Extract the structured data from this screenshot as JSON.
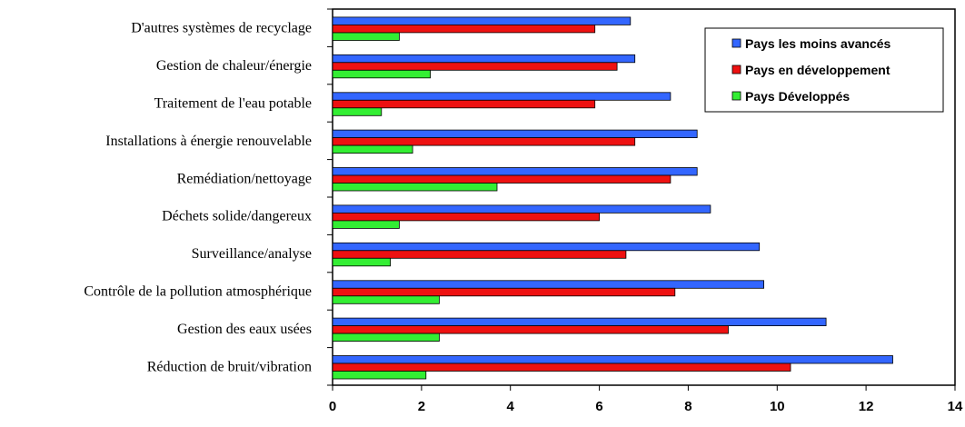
{
  "chart_data": {
    "type": "bar",
    "orientation": "horizontal",
    "title": "",
    "xlabel": "",
    "ylabel": "",
    "xlim": [
      0,
      14
    ],
    "x_ticks": [
      "0",
      "2",
      "4",
      "6",
      "8",
      "10",
      "12",
      "14"
    ],
    "grid": false,
    "legend_position": "top-right",
    "categories": [
      "D'autres systèmes de recyclage",
      "Gestion de chaleur/énergie",
      "Traitement de l'eau potable",
      "Installations à énergie renouvelable",
      "Remédiation/nettoyage",
      "Déchets solide/dangereux",
      "Surveillance/analyse",
      "Contrôle de la pollution atmosphérique",
      "Gestion des eaux usées",
      "Réduction de bruit/vibration"
    ],
    "series": [
      {
        "name": "Pays les moins avancés",
        "color": "#3366ff",
        "values": [
          6.7,
          6.8,
          7.6,
          8.2,
          8.2,
          8.5,
          9.6,
          9.7,
          11.1,
          12.6
        ]
      },
      {
        "name": "Pays en développement",
        "color": "#ee1111",
        "values": [
          5.9,
          6.4,
          5.9,
          6.8,
          7.6,
          6.0,
          6.6,
          7.7,
          8.9,
          10.3
        ]
      },
      {
        "name": "Pays Développés",
        "color": "#33ee33",
        "values": [
          1.5,
          2.2,
          1.1,
          1.8,
          3.7,
          1.5,
          1.3,
          2.4,
          2.4,
          2.1
        ]
      }
    ]
  }
}
